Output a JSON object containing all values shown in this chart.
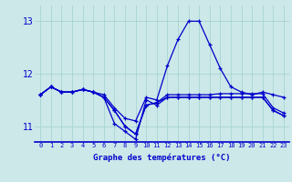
{
  "xlabel": "Graphe des températures (°C)",
  "background_color": "#cce8e8",
  "line_color": "#0000cc",
  "hours": [
    0,
    1,
    2,
    3,
    4,
    5,
    6,
    7,
    8,
    9,
    10,
    11,
    12,
    13,
    14,
    15,
    16,
    17,
    18,
    19,
    20,
    21,
    22,
    23
  ],
  "series": [
    [
      11.6,
      11.75,
      11.65,
      11.65,
      11.7,
      11.65,
      11.6,
      11.35,
      11.15,
      11.1,
      11.55,
      11.5,
      12.15,
      12.65,
      13.0,
      13.0,
      12.55,
      12.1,
      11.75,
      11.65,
      11.6,
      11.65,
      11.6,
      11.55
    ],
    [
      11.6,
      11.75,
      11.65,
      11.65,
      11.7,
      11.65,
      11.55,
      11.3,
      11.0,
      10.85,
      11.4,
      11.45,
      11.55,
      11.55,
      11.55,
      11.55,
      11.55,
      11.55,
      11.55,
      11.55,
      11.55,
      11.55,
      11.3,
      11.2
    ],
    [
      11.6,
      11.75,
      11.65,
      11.65,
      11.7,
      11.65,
      11.55,
      11.3,
      11.0,
      10.85,
      11.4,
      11.45,
      11.6,
      11.6,
      11.6,
      11.6,
      11.6,
      11.62,
      11.62,
      11.62,
      11.62,
      11.62,
      11.35,
      11.25
    ],
    [
      11.6,
      11.75,
      11.65,
      11.65,
      11.7,
      11.65,
      11.55,
      11.05,
      10.9,
      10.75,
      11.5,
      11.4,
      11.55,
      11.55,
      11.55,
      11.55,
      11.55,
      11.55,
      11.55,
      11.55,
      11.55,
      11.55,
      11.3,
      11.2
    ]
  ],
  "ylim": [
    10.7,
    13.3
  ],
  "yticks": [
    11,
    12,
    13
  ],
  "xlim": [
    -0.5,
    23.5
  ],
  "grid_color": "#aad4d4",
  "marker": "+"
}
